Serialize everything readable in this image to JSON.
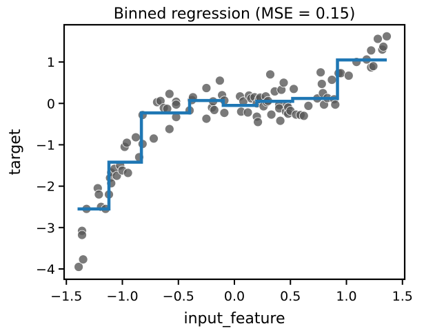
{
  "chart_data": {
    "type": "scatter",
    "title": "Binned regression (MSE = 0.15)",
    "xlabel": "input_feature",
    "ylabel": "target",
    "xlim": [
      -1.52,
      1.52
    ],
    "ylim": [
      -4.25,
      1.9
    ],
    "xticks": [
      -1.5,
      -1.0,
      -0.5,
      0.0,
      0.5,
      1.0,
      1.5
    ],
    "xtick_labels": [
      "−1.5",
      "−1.0",
      "−0.5",
      "0.0",
      "0.5",
      "1.0",
      "1.5"
    ],
    "yticks": [
      -4,
      -3,
      -2,
      -1,
      0,
      1
    ],
    "ytick_labels": [
      "−4",
      "−3",
      "−2",
      "−1",
      "0",
      "1"
    ],
    "grid": false,
    "point_color": "#555555",
    "line_color": "#1f77b4",
    "points": [
      [
        -1.39,
        -3.95
      ],
      [
        -1.35,
        -3.77
      ],
      [
        -1.36,
        -3.08
      ],
      [
        -1.36,
        -3.18
      ],
      [
        -1.32,
        -2.55
      ],
      [
        -1.22,
        -2.05
      ],
      [
        -1.21,
        -2.2
      ],
      [
        -1.19,
        -2.5
      ],
      [
        -1.15,
        -2.55
      ],
      [
        -1.12,
        -2.2
      ],
      [
        -1.11,
        -1.8
      ],
      [
        -1.1,
        -1.93
      ],
      [
        -1.1,
        -1.67
      ],
      [
        -1.07,
        -1.58
      ],
      [
        -1.05,
        -1.75
      ],
      [
        -1.02,
        -1.5
      ],
      [
        -1.0,
        -1.62
      ],
      [
        -0.98,
        -1.05
      ],
      [
        -0.96,
        -0.95
      ],
      [
        -0.95,
        -1.68
      ],
      [
        -0.88,
        -0.82
      ],
      [
        -0.85,
        -1.3
      ],
      [
        -0.82,
        -0.98
      ],
      [
        -0.82,
        -0.28
      ],
      [
        -0.72,
        -0.85
      ],
      [
        -0.69,
        0.03
      ],
      [
        -0.66,
        0.06
      ],
      [
        -0.63,
        -0.11
      ],
      [
        -0.6,
        -0.13
      ],
      [
        -0.58,
        0.23
      ],
      [
        -0.58,
        -0.62
      ],
      [
        -0.52,
        0.04
      ],
      [
        -0.52,
        -0.03
      ],
      [
        -0.52,
        -0.33
      ],
      [
        -0.4,
        -0.17
      ],
      [
        -0.38,
        0.08
      ],
      [
        -0.37,
        0.15
      ],
      [
        -0.25,
        -0.37
      ],
      [
        -0.25,
        0.37
      ],
      [
        -0.2,
        -0.1
      ],
      [
        -0.19,
        0.05
      ],
      [
        -0.18,
        -0.16
      ],
      [
        -0.13,
        0.55
      ],
      [
        -0.11,
        0.2
      ],
      [
        -0.09,
        0.07
      ],
      [
        -0.09,
        -0.23
      ],
      [
        0.05,
        0.17
      ],
      [
        0.06,
        -0.2
      ],
      [
        0.08,
        0.05
      ],
      [
        0.12,
        -0.22
      ],
      [
        0.13,
        0.19
      ],
      [
        0.15,
        0.12
      ],
      [
        0.18,
        0.15
      ],
      [
        0.2,
        0.0
      ],
      [
        0.2,
        -0.32
      ],
      [
        0.21,
        -0.45
      ],
      [
        0.22,
        0.1
      ],
      [
        0.23,
        0.14
      ],
      [
        0.26,
        -0.07
      ],
      [
        0.28,
        0.17
      ],
      [
        0.29,
        0.03
      ],
      [
        0.3,
        0.06
      ],
      [
        0.32,
        0.7
      ],
      [
        0.33,
        -0.27
      ],
      [
        0.36,
        0.29
      ],
      [
        0.4,
        -0.04
      ],
      [
        0.4,
        -0.12
      ],
      [
        0.41,
        -0.42
      ],
      [
        0.42,
        0.33
      ],
      [
        0.44,
        0.5
      ],
      [
        0.46,
        -0.2
      ],
      [
        0.47,
        -0.03
      ],
      [
        0.48,
        -0.1
      ],
      [
        0.48,
        -0.25
      ],
      [
        0.5,
        -0.18
      ],
      [
        0.53,
        0.35
      ],
      [
        0.55,
        -0.27
      ],
      [
        0.59,
        -0.28
      ],
      [
        0.62,
        -0.3
      ],
      [
        0.66,
        -0.06
      ],
      [
        0.74,
        0.12
      ],
      [
        0.77,
        0.75
      ],
      [
        0.78,
        0.47
      ],
      [
        0.79,
        0.25
      ],
      [
        0.8,
        -0.03
      ],
      [
        0.83,
        0.13
      ],
      [
        0.87,
        0.57
      ],
      [
        0.89,
        0.1
      ],
      [
        0.9,
        -0.03
      ],
      [
        0.93,
        0.73
      ],
      [
        0.95,
        0.73
      ],
      [
        1.02,
        0.67
      ],
      [
        1.09,
        1.0
      ],
      [
        1.18,
        1.06
      ],
      [
        1.22,
        0.87
      ],
      [
        1.22,
        1.28
      ],
      [
        1.24,
        0.9
      ],
      [
        1.28,
        1.56
      ],
      [
        1.32,
        1.3
      ],
      [
        1.33,
        1.37
      ],
      [
        1.36,
        1.62
      ]
    ],
    "step_line": [
      [
        -1.4,
        -2.55
      ],
      [
        -1.12,
        -2.55
      ],
      [
        -1.12,
        -1.42
      ],
      [
        -1.0,
        -1.42
      ],
      [
        -0.83,
        -1.42
      ],
      [
        -0.83,
        -0.23
      ],
      [
        -0.55,
        -0.23
      ],
      [
        -0.4,
        -0.23
      ],
      [
        -0.4,
        0.07
      ],
      [
        -0.1,
        0.07
      ],
      [
        -0.1,
        -0.05
      ],
      [
        0.0,
        -0.05
      ],
      [
        0.2,
        -0.05
      ],
      [
        0.2,
        0.05
      ],
      [
        0.5,
        0.05
      ],
      [
        0.52,
        0.05
      ],
      [
        0.52,
        0.12
      ],
      [
        0.92,
        0.12
      ],
      [
        0.92,
        1.05
      ],
      [
        1.36,
        1.05
      ]
    ]
  }
}
